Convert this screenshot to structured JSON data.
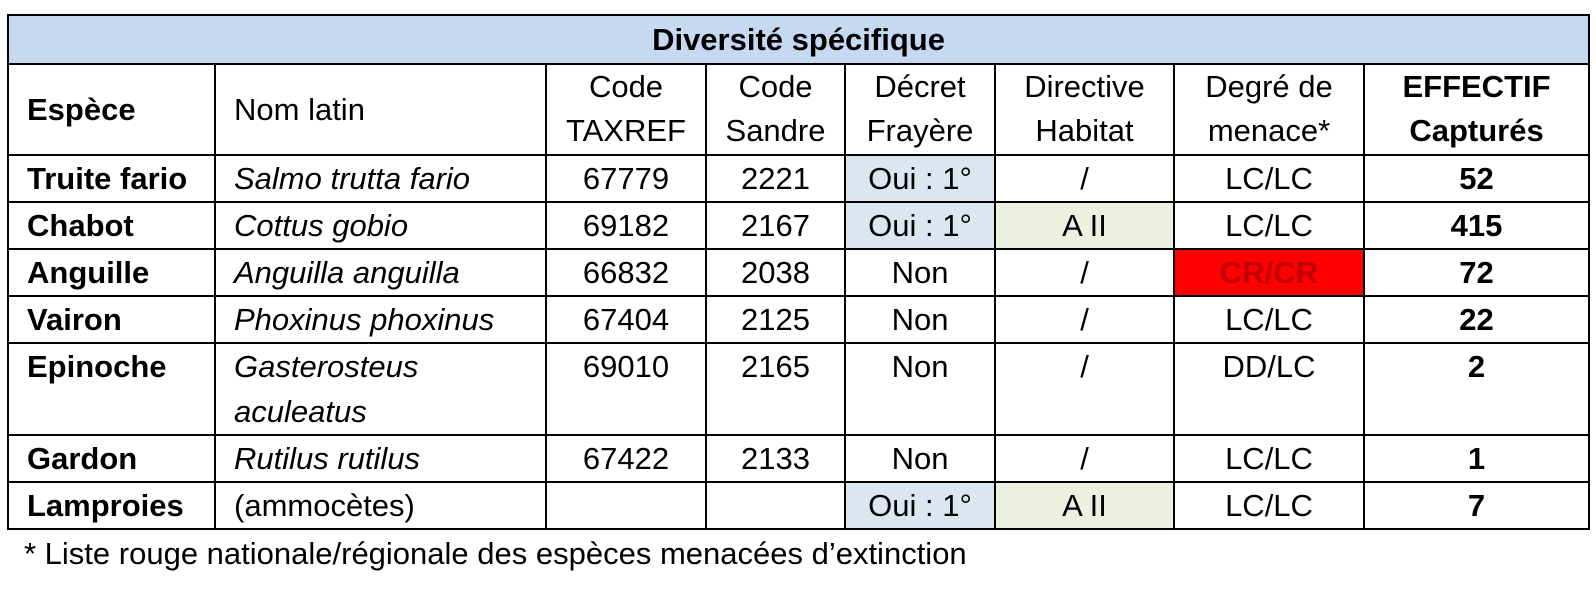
{
  "table": {
    "title": "Diversité spécifique",
    "headers": {
      "espece": "Espèce",
      "nom_latin": "Nom latin",
      "taxref_1": "Code",
      "taxref_2": "TAXREF",
      "sandre_1": "Code",
      "sandre_2": "Sandre",
      "decret_1": "Décret",
      "decret_2": "Frayère",
      "directive_1": "Directive",
      "directive_2": "Habitat",
      "menace_1": "Degré de",
      "menace_2": "menace*",
      "effectif_1": "EFFECTIF",
      "effectif_2": "Capturés"
    },
    "rows": [
      {
        "espece": "Truite fario",
        "nom_latin": "Salmo trutta fario",
        "taxref": "67779",
        "sandre": "2221",
        "decret": "Oui : 1°",
        "directive": "/",
        "menace": "LC/LC",
        "effectif": "52"
      },
      {
        "espece": "Chabot",
        "nom_latin": "Cottus gobio",
        "taxref": "69182",
        "sandre": "2167",
        "decret": "Oui : 1°",
        "directive": "A II",
        "menace": "LC/LC",
        "effectif": "415"
      },
      {
        "espece": "Anguille",
        "nom_latin": "Anguilla anguilla",
        "taxref": "66832",
        "sandre": "2038",
        "decret": "Non",
        "directive": "/",
        "menace": "CR/CR",
        "effectif": "72"
      },
      {
        "espece": "Vairon",
        "nom_latin": "Phoxinus phoxinus",
        "taxref": "67404",
        "sandre": "2125",
        "decret": "Non",
        "directive": "/",
        "menace": "LC/LC",
        "effectif": "22"
      },
      {
        "espece": "Epinoche",
        "nom_latin_1": "Gasterosteus",
        "nom_latin_2": "aculeatus",
        "taxref": "69010",
        "sandre": "2165",
        "decret": "Non",
        "directive": "/",
        "menace": "DD/LC",
        "effectif": "2"
      },
      {
        "espece": "Gardon",
        "nom_latin": "Rutilus rutilus",
        "taxref": "67422",
        "sandre": "2133",
        "decret": "Non",
        "directive": "/",
        "menace": "LC/LC",
        "effectif": "1"
      },
      {
        "espece": "Lamproies",
        "nom_latin": "(ammocètes)",
        "taxref": "",
        "sandre": "",
        "decret": "Oui : 1°",
        "directive": "A II",
        "menace": "LC/LC",
        "effectif": "7"
      }
    ]
  },
  "footnote": "* Liste rouge nationale/régionale des espèces menacées d’extinction",
  "colors": {
    "title_bg": "#c5d9f1",
    "decret_highlight": "#dce6f1",
    "directive_highlight": "#ebf1de",
    "critical_bg": "#ff0000",
    "critical_text": "#c00000"
  }
}
